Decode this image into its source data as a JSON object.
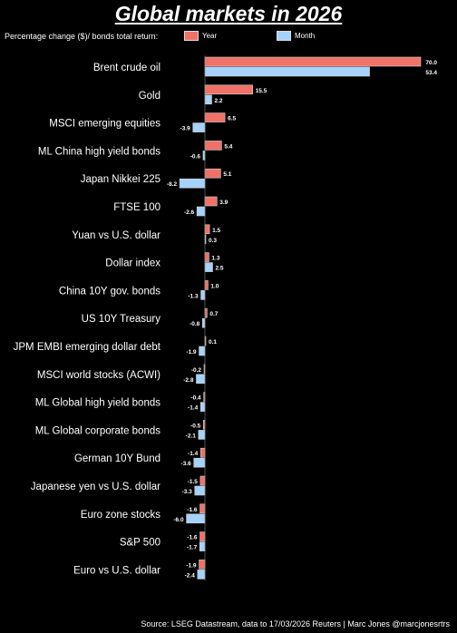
{
  "title": "Global markets in 2026",
  "subtitle": "Percentage change ($)/ bonds total return:",
  "source": "Source: LSEG Datastream, data to 17/03/2026  Reuters | Marc Jones @marcjonesrtrs",
  "colors": {
    "background": "#000000",
    "year": "#f07167",
    "month": "#a6d1fa",
    "text": "#ffffff"
  },
  "chart_data": {
    "type": "bar",
    "orientation": "horizontal",
    "title": "Global markets in 2026",
    "categories": [
      "Brent crude oil",
      "Gold",
      "MSCI emerging equities",
      "ML China high yield bonds",
      "Japan Nikkei 225",
      "FTSE 100",
      "Yuan vs U.S. dollar",
      "Dollar index",
      "China 10Y gov. bonds",
      "US 10Y Treasury",
      "JPM EMBI emerging dollar debt",
      "MSCI world stocks (ACWI)",
      "ML Global high yield bonds",
      "ML Global corporate bonds",
      "German 10Y Bund",
      "Japanese yen vs U.S. dollar",
      "Euro zone stocks",
      "S&P 500",
      "Euro vs U.S. dollar"
    ],
    "series": [
      {
        "name": "Year",
        "values": [
          70.0,
          15.5,
          6.5,
          5.4,
          5.1,
          3.9,
          1.5,
          1.3,
          1.0,
          0.7,
          0.1,
          -0.2,
          -0.4,
          -0.5,
          -1.4,
          -1.5,
          -1.6,
          -1.6,
          -1.9
        ],
        "labels": [
          "70.0",
          "15.5",
          "6.5",
          "5.4",
          "5.1",
          "3.9",
          "1.5",
          "1.3",
          "1.0",
          "0.7",
          "0.1",
          "-0.2",
          "-0.4",
          "-0.5",
          "-1.4",
          "-1.5",
          "-1.6",
          "-1.6",
          "-1.9"
        ]
      },
      {
        "name": "Month",
        "values": [
          53.4,
          2.2,
          -3.9,
          -0.6,
          -8.2,
          -2.6,
          0.3,
          2.5,
          -1.3,
          -0.8,
          -1.9,
          -2.8,
          -1.4,
          -2.1,
          -3.6,
          -3.3,
          -6.0,
          -1.7,
          -2.4
        ],
        "labels": [
          "53.4",
          "2.2",
          "-3.9",
          "-0.6",
          "-8.2",
          "-2.6",
          "0.3",
          "2.5",
          "-1.3",
          "-0.8",
          "-1.9",
          "-2.8",
          "-1.4",
          "-2.1",
          "-3.6",
          "-3.3",
          "-6.0",
          "-1.7",
          "-2.4"
        ]
      }
    ],
    "legend_placement": "top",
    "grid": false
  }
}
